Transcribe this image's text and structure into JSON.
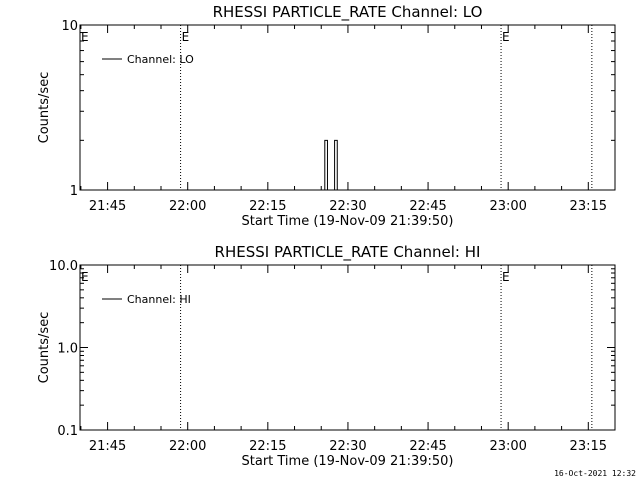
{
  "chart_data": [
    {
      "type": "line",
      "title": "RHESSI PARTICLE_RATE Channel: LO",
      "xlabel": "Start Time (19-Nov-09 21:39:50)",
      "ylabel": "Counts/sec",
      "yscale": "log",
      "ylim": [
        1,
        10
      ],
      "yticks": [
        {
          "value": 1,
          "label": "1"
        },
        {
          "value": 10,
          "label": "10"
        }
      ],
      "xlim": [
        "21:39:50",
        "23:20:00"
      ],
      "xticks": [
        "21:45",
        "22:00",
        "22:15",
        "22:30",
        "22:45",
        "23:00",
        "23:15"
      ],
      "legend": {
        "position": "top-left",
        "entries": [
          "Channel: LO"
        ]
      },
      "event_markers": [
        {
          "time": "21:58:40",
          "label": "E"
        },
        {
          "time": "22:58:40",
          "label": "E"
        },
        {
          "time": "23:15:40",
          "label": ""
        }
      ],
      "start_marker_label": "E",
      "series": [
        {
          "name": "Channel: LO",
          "spikes": [
            {
              "t_start": "22:25:40",
              "t_end": "22:26:10",
              "value": 2
            },
            {
              "t_start": "22:27:30",
              "t_end": "22:28:00",
              "value": 2
            }
          ]
        }
      ]
    },
    {
      "type": "line",
      "title": "RHESSI PARTICLE_RATE Channel: HI",
      "xlabel": "Start Time (19-Nov-09 21:39:50)",
      "ylabel": "Counts/sec",
      "yscale": "log",
      "ylim": [
        0.1,
        10
      ],
      "yticks": [
        {
          "value": 0.1,
          "label": "0.1"
        },
        {
          "value": 1,
          "label": "1.0"
        },
        {
          "value": 10,
          "label": "10.0"
        }
      ],
      "xlim": [
        "21:39:50",
        "23:20:00"
      ],
      "xticks": [
        "21:45",
        "22:00",
        "22:15",
        "22:30",
        "22:45",
        "23:00",
        "23:15"
      ],
      "legend": {
        "position": "top-left",
        "entries": [
          "Channel: HI"
        ]
      },
      "event_markers": [
        {
          "time": "21:58:40",
          "label": ""
        },
        {
          "time": "22:58:40",
          "label": "E"
        },
        {
          "time": "23:15:40",
          "label": ""
        }
      ],
      "start_marker_label": "E",
      "series": [
        {
          "name": "Channel: HI",
          "spikes": []
        }
      ]
    }
  ],
  "footer": {
    "timestamp": "16-Oct-2021 12:32"
  }
}
